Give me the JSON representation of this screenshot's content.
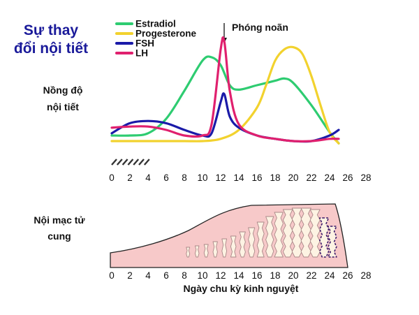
{
  "title": {
    "line1": "Sự thay",
    "line2": "đổi nội tiết"
  },
  "hormone_axis_label": {
    "line1": "Nồng độ",
    "line2": "nội tiết"
  },
  "endometrium_axis_label": {
    "line1": "Nội mạc tử",
    "line2": "cung"
  },
  "ovulation_label": "Phóng noãn",
  "x_axis_title": "Ngày chu kỳ kinh nguyệt",
  "colors": {
    "estradiol": "#2ecc71",
    "progesterone": "#f2d22e",
    "fsh": "#1a1aa8",
    "lh": "#e0206e",
    "endometrium": "#f7c9c9"
  },
  "legend": [
    {
      "name": "Estradiol",
      "color": "#2ecc71"
    },
    {
      "name": "Progesterone",
      "color": "#f2d22e"
    },
    {
      "name": "FSH",
      "color": "#1a1aa8"
    },
    {
      "name": "LH",
      "color": "#e0206e"
    }
  ],
  "x_ticks": [
    "0",
    "2",
    "4",
    "6",
    "8",
    "10",
    "12",
    "14",
    "16",
    "18",
    "20",
    "22",
    "24",
    "26",
    "28"
  ],
  "chart_data": {
    "type": "line",
    "x_unit": "day",
    "x_range": [
      0,
      28
    ],
    "y_range": [
      0,
      1
    ],
    "menstruation_days": [
      0,
      4
    ],
    "ovulation_day": 12.5,
    "series": [
      {
        "name": "Estradiol",
        "points": [
          [
            0,
            0.15
          ],
          [
            2,
            0.15
          ],
          [
            4,
            0.17
          ],
          [
            6,
            0.3
          ],
          [
            8,
            0.55
          ],
          [
            10,
            0.82
          ],
          [
            11,
            0.85
          ],
          [
            12,
            0.78
          ],
          [
            13,
            0.6
          ],
          [
            14,
            0.56
          ],
          [
            16,
            0.6
          ],
          [
            18,
            0.64
          ],
          [
            19,
            0.66
          ],
          [
            20,
            0.62
          ],
          [
            22,
            0.42
          ],
          [
            24,
            0.18
          ],
          [
            25,
            0.08
          ]
        ]
      },
      {
        "name": "Progesterone",
        "points": [
          [
            0,
            0.1
          ],
          [
            2,
            0.1
          ],
          [
            4,
            0.1
          ],
          [
            8,
            0.1
          ],
          [
            10,
            0.1
          ],
          [
            12,
            0.12
          ],
          [
            14,
            0.2
          ],
          [
            16,
            0.4
          ],
          [
            17,
            0.6
          ],
          [
            18,
            0.82
          ],
          [
            19,
            0.92
          ],
          [
            20,
            0.94
          ],
          [
            21,
            0.88
          ],
          [
            22,
            0.68
          ],
          [
            23,
            0.42
          ],
          [
            24,
            0.18
          ],
          [
            25,
            0.08
          ]
        ]
      },
      {
        "name": "FSH",
        "points": [
          [
            0,
            0.17
          ],
          [
            2,
            0.26
          ],
          [
            4,
            0.28
          ],
          [
            6,
            0.26
          ],
          [
            8,
            0.2
          ],
          [
            10,
            0.15
          ],
          [
            11,
            0.17
          ],
          [
            12,
            0.45
          ],
          [
            12.4,
            0.52
          ],
          [
            13,
            0.32
          ],
          [
            14,
            0.22
          ],
          [
            16,
            0.15
          ],
          [
            18,
            0.12
          ],
          [
            20,
            0.1
          ],
          [
            22,
            0.1
          ],
          [
            24,
            0.15
          ],
          [
            25,
            0.2
          ]
        ]
      },
      {
        "name": "LH",
        "points": [
          [
            0,
            0.22
          ],
          [
            2,
            0.23
          ],
          [
            4,
            0.23
          ],
          [
            6,
            0.2
          ],
          [
            8,
            0.15
          ],
          [
            10,
            0.15
          ],
          [
            11,
            0.25
          ],
          [
            12,
            0.92
          ],
          [
            12.4,
            0.99
          ],
          [
            13,
            0.55
          ],
          [
            14,
            0.25
          ],
          [
            16,
            0.15
          ],
          [
            18,
            0.12
          ],
          [
            20,
            0.1
          ],
          [
            22,
            0.1
          ],
          [
            24,
            0.12
          ],
          [
            25,
            0.12
          ]
        ]
      }
    ]
  }
}
